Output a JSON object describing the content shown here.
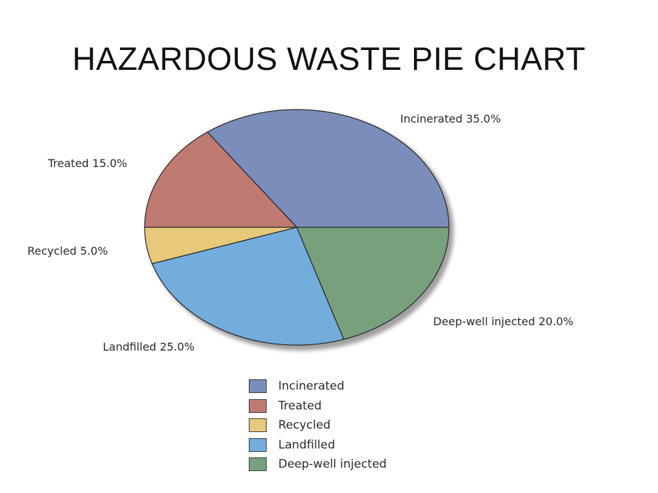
{
  "title": "HAZARDOUS WASTE PIE CHART",
  "chart_data": {
    "type": "pie",
    "title": "HAZARDOUS WASTE PIE CHART",
    "legend_position": "bottom",
    "slices": [
      {
        "name": "Incinerated",
        "value": 35.0,
        "label": "Incinerated 35.0%",
        "color": "#7b8dbb"
      },
      {
        "name": "Treated",
        "value": 15.0,
        "label": "Treated 15.0%",
        "color": "#bf7a72"
      },
      {
        "name": "Recycled",
        "value": 5.0,
        "label": "Recycled 5.0%",
        "color": "#e8c87a"
      },
      {
        "name": "Landfilled",
        "value": 25.0,
        "label": "Landfilled 25.0%",
        "color": "#72addb"
      },
      {
        "name": "Deep-well injected",
        "value": 20.0,
        "label": "Deep-well injected 20.0%",
        "color": "#78a07c"
      }
    ],
    "legend": [
      "Incinerated",
      "Treated",
      "Recycled",
      "Landfilled",
      "Deep-well injected"
    ]
  }
}
